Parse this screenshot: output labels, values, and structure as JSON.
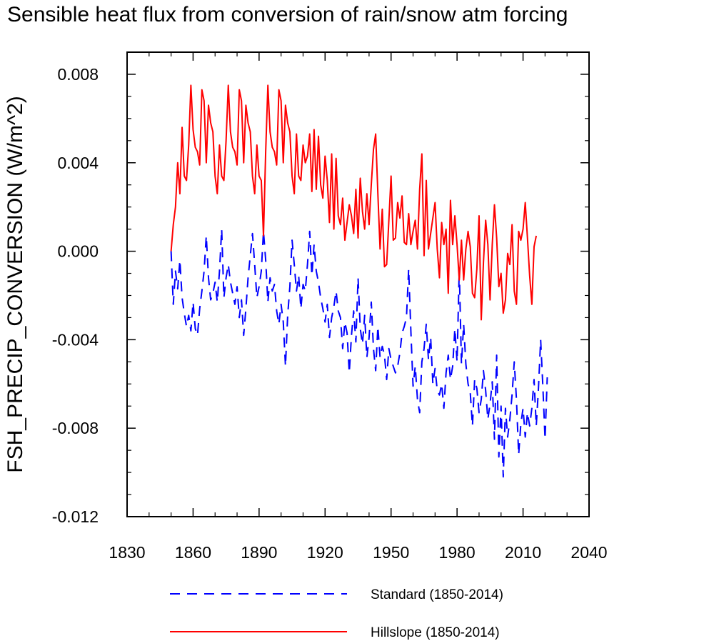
{
  "chart_data": {
    "type": "line",
    "title": "Sensible heat flux from conversion of rain/snow atm forcing",
    "xlabel": "",
    "ylabel": "FSH_PRECIP_CONVERSION  (W/m^2)",
    "xlim": [
      1830,
      2040
    ],
    "ylim": [
      -0.012,
      0.009
    ],
    "xticks": [
      1830,
      1860,
      1890,
      1920,
      1950,
      1980,
      2010,
      2040
    ],
    "xtick_labels": [
      "1830",
      "1860",
      "1890",
      "1920",
      "1950",
      "1980",
      "2010",
      "2040"
    ],
    "yticks": [
      -0.012,
      -0.008,
      -0.004,
      0.0,
      0.004,
      0.008
    ],
    "ytick_labels": [
      "-0.012",
      "-0.008",
      "-0.004",
      "0.000",
      "0.004",
      "0.008"
    ],
    "x_start": 1850,
    "legend_position": "bottom",
    "series": [
      {
        "name": "Standard (1850-2014)",
        "color": "#0000ff",
        "style": "dashed",
        "values": [
          0.0,
          -0.0024,
          -0.0009,
          -0.0017,
          -0.0004,
          -0.0021,
          -0.0028,
          -0.0034,
          -0.0029,
          -0.0036,
          -0.0023,
          -0.0035,
          -0.0038,
          -0.0026,
          -0.0018,
          -0.0009,
          0.0007,
          -0.0012,
          -0.0022,
          -0.0019,
          -0.0014,
          -0.0023,
          -0.0009,
          0.001,
          -0.0021,
          -0.0012,
          -0.0006,
          -0.0014,
          -0.0019,
          -0.0024,
          -0.0016,
          -0.003,
          -0.0022,
          -0.0038,
          -0.0026,
          -0.0012,
          -0.0002,
          0.0008,
          -0.0006,
          -0.0021,
          -0.0016,
          -0.0009,
          0.0009,
          -0.0004,
          -0.0023,
          -0.0012,
          -0.0018,
          -0.0015,
          -0.0027,
          -0.0033,
          -0.0024,
          -0.0032,
          -0.0052,
          -0.0029,
          -0.0016,
          0.0005,
          -0.0006,
          -0.0018,
          -0.0011,
          -0.0026,
          -0.0015,
          -0.0018,
          -0.0006,
          0.0009,
          -0.0011,
          0.0003,
          -0.0009,
          -0.0014,
          -0.0021,
          -0.0026,
          -0.0032,
          -0.0024,
          -0.0039,
          -0.003,
          -0.0025,
          -0.0018,
          -0.0027,
          -0.003,
          -0.0044,
          -0.0032,
          -0.0037,
          -0.0055,
          -0.0038,
          -0.0027,
          -0.0041,
          -0.0012,
          -0.0035,
          -0.0042,
          -0.0029,
          -0.0048,
          -0.0039,
          -0.0023,
          -0.0044,
          -0.0054,
          -0.0034,
          -0.0048,
          -0.0043,
          -0.0047,
          -0.0058,
          -0.0044,
          -0.0049,
          -0.0052,
          -0.0055,
          -0.0052,
          -0.0046,
          -0.0037,
          -0.0034,
          -0.003,
          -0.0008,
          -0.0036,
          -0.0061,
          -0.0052,
          -0.0067,
          -0.0073,
          -0.005,
          -0.0044,
          -0.0033,
          -0.0049,
          -0.0039,
          -0.006,
          -0.0053,
          -0.0063,
          -0.0065,
          -0.006,
          -0.0071,
          -0.0055,
          -0.0047,
          -0.0058,
          -0.0052,
          -0.0035,
          -0.005,
          -0.0008,
          -0.0051,
          -0.0033,
          -0.0051,
          -0.006,
          -0.0064,
          -0.0079,
          -0.0058,
          -0.0062,
          -0.0073,
          -0.0067,
          -0.0054,
          -0.0063,
          -0.0076,
          -0.0069,
          -0.0059,
          -0.0085,
          -0.0047,
          -0.0093,
          -0.007,
          -0.0102,
          -0.0071,
          -0.0084,
          -0.0076,
          -0.0065,
          -0.005,
          -0.0067,
          -0.0092,
          -0.0078,
          -0.0071,
          -0.0084,
          -0.0073,
          -0.0079,
          -0.0071,
          -0.0058,
          -0.0079,
          -0.0062,
          -0.004,
          -0.0061,
          -0.0085,
          -0.0057
        ]
      },
      {
        "name": "Hillslope (1850-2014)",
        "color": "#ff0000",
        "style": "solid",
        "values": [
          0.0,
          0.0012,
          0.002,
          0.004,
          0.0026,
          0.0056,
          0.0034,
          0.0032,
          0.0048,
          0.0075,
          0.0055,
          0.0047,
          0.0045,
          0.0039,
          0.0073,
          0.0068,
          0.004,
          0.0066,
          0.0058,
          0.0054,
          0.0034,
          0.0026,
          0.0048,
          0.0034,
          0.0032,
          0.005,
          0.0075,
          0.0054,
          0.0047,
          0.0045,
          0.0039,
          0.0073,
          0.0068,
          0.004,
          0.0066,
          0.0058,
          0.0054,
          0.0034,
          0.0026,
          0.0048,
          0.0034,
          0.0032,
          0.0007,
          0.0045,
          0.0075,
          0.0054,
          0.0047,
          0.0045,
          0.0039,
          0.0073,
          0.0068,
          0.004,
          0.0066,
          0.0058,
          0.0054,
          0.0034,
          0.0026,
          0.0053,
          0.0034,
          0.0032,
          0.0048,
          0.004,
          0.0043,
          0.0053,
          0.0027,
          0.0055,
          0.0028,
          0.0052,
          0.003,
          0.0024,
          0.0043,
          0.0032,
          0.0013,
          0.0044,
          0.001,
          0.0042,
          0.0016,
          0.0012,
          0.0024,
          0.0005,
          0.0013,
          0.0021,
          0.0016,
          0.0008,
          0.0028,
          0.0006,
          0.0033,
          0.0018,
          0.001,
          0.0026,
          0.0012,
          0.003,
          0.0046,
          0.0053,
          0.0026,
          0.0001,
          0.0019,
          -0.0007,
          -0.0006,
          0.0014,
          0.0034,
          0.0005,
          0.0006,
          0.0022,
          0.0015,
          0.0025,
          0.0004,
          0.0003,
          0.0017,
          0.0003,
          0.0009,
          0.0014,
          0.0001,
          0.0028,
          0.0044,
          -0.0002,
          0.0032,
          0.0001,
          0.0008,
          0.0015,
          0.0022,
          0.0001,
          -0.0012,
          0.0013,
          0.0003,
          0.001,
          -0.0019,
          0.0023,
          0.0003,
          0.0016,
          0.0003,
          -0.0013,
          0.0005,
          -0.0013,
          0.0001,
          0.0009,
          0.0002,
          -0.0019,
          -0.0021,
          -0.0008,
          0.0016,
          -0.0031,
          -0.0005,
          0.0014,
          0.0003,
          -0.0022,
          0.0003,
          0.0021,
          0.0006,
          -0.0016,
          -0.001,
          -0.0028,
          -0.0022,
          -0.0001,
          -0.0006,
          0.0012,
          -0.0018,
          -0.0024,
          0.0009,
          0.0005,
          0.001,
          0.0022,
          0.0006,
          -0.0011,
          -0.0024,
          0.0002,
          0.0007
        ]
      }
    ]
  }
}
